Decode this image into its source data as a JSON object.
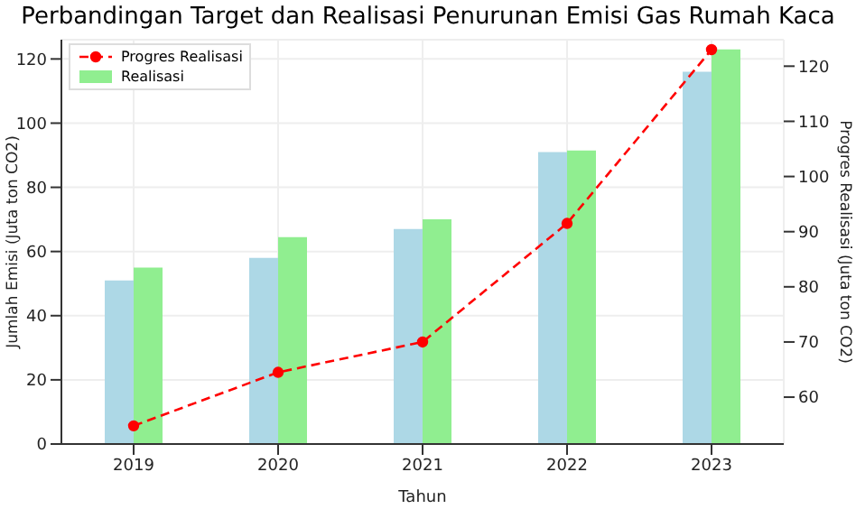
{
  "chart_data": {
    "type": "bar",
    "title": "Perbandingan Target dan Realisasi Penurunan Emisi Gas Rumah Kaca",
    "xlabel": "Tahun",
    "ylabel": "Jumlah Emisi (Juta ton CO2)",
    "y2label": "Progres Realisasi (Juta ton CO2)",
    "categories": [
      "2019",
      "2020",
      "2021",
      "2022",
      "2023"
    ],
    "series": [
      {
        "color": "#add8e6",
        "values": [
          51,
          58,
          67,
          91,
          116
        ]
      },
      {
        "name": "Realisasi",
        "color": "#90ee90",
        "values": [
          55,
          64.5,
          70,
          91.5,
          123
        ]
      },
      {
        "name": "Progres Realisasi",
        "type": "line",
        "axis": "y2",
        "color": "#ff0000",
        "line_style": "dashed",
        "marker": "circle",
        "values": [
          54.8,
          64.5,
          70,
          91.5,
          123
        ]
      }
    ],
    "ylim": [
      0,
      126
    ],
    "yticks": [
      0,
      20,
      40,
      60,
      80,
      100,
      120
    ],
    "y2lim": [
      51.5,
      124.8
    ],
    "y2ticks": [
      60,
      70,
      80,
      90,
      100,
      110,
      120
    ],
    "grid": true,
    "legend": "top left"
  }
}
